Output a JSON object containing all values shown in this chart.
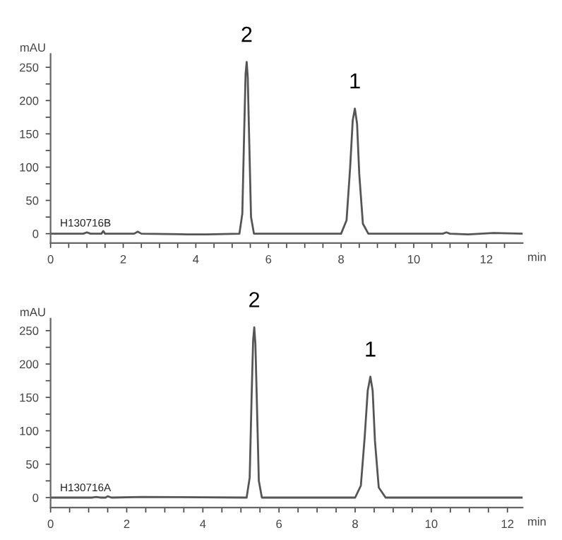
{
  "chart_data": [
    {
      "type": "line",
      "ylabel": "mAU",
      "xlabel": "min",
      "grid": false,
      "legend": false,
      "marker": "none",
      "line_style": "solid",
      "annotations": [
        {
          "text": "2",
          "x": 5.4,
          "y": 258
        },
        {
          "text": "1",
          "x": 8.38,
          "y": 188
        },
        "H130716B"
      ],
      "xlim": [
        0,
        13
      ],
      "ylim": [
        -14,
        270
      ],
      "xticks": [
        0,
        {
          "value": 0.5,
          "label": null
        },
        2,
        {
          "value": 1,
          "label": null
        },
        {
          "value": 1.5,
          "label": null
        },
        {
          "value": 2.5,
          "label": null
        },
        {
          "value": 3,
          "label": null
        },
        {
          "value": 3.5,
          "label": null
        },
        4,
        {
          "value": 4.5,
          "label": null
        },
        {
          "value": 5,
          "label": null
        },
        {
          "value": 5.5,
          "label": null
        },
        6,
        {
          "value": 6.5,
          "label": null
        },
        {
          "value": 7,
          "label": null
        },
        {
          "value": 7.5,
          "label": null
        },
        8,
        {
          "value": 8.5,
          "label": null
        },
        {
          "value": 9,
          "label": null
        },
        {
          "value": 9.5,
          "label": null
        },
        10,
        {
          "value": 10.5,
          "label": null
        },
        {
          "value": 11,
          "label": null
        },
        {
          "value": 11.5,
          "label": null
        },
        12,
        {
          "value": 12.5,
          "label": null
        }
      ],
      "yticks": [
        0,
        {
          "value": 25,
          "label": null
        },
        50,
        {
          "value": 75,
          "label": null
        },
        100,
        {
          "value": 125,
          "label": null
        },
        150,
        {
          "value": 175,
          "label": null
        },
        200,
        {
          "value": 225,
          "label": null
        },
        250
      ],
      "series": [
        {
          "color": "#555555",
          "x": [
            0,
            0.9,
            1.0,
            1.1,
            1.4,
            1.45,
            1.5,
            2.3,
            2.4,
            2.5,
            3.8,
            4.3,
            5.2,
            5.28,
            5.33,
            5.37,
            5.4,
            5.43,
            5.47,
            5.52,
            5.6,
            8.0,
            8.15,
            8.25,
            8.32,
            8.38,
            8.44,
            8.5,
            8.6,
            8.75,
            10.8,
            10.9,
            11.0,
            11.5,
            12.2,
            13.0
          ],
          "values": [
            0,
            0,
            2,
            0,
            0,
            4,
            0,
            0,
            3,
            0,
            -1,
            -1,
            0,
            30,
            150,
            240,
            258,
            235,
            140,
            25,
            0,
            0,
            20,
            100,
            170,
            188,
            165,
            90,
            15,
            0,
            0,
            2,
            0,
            -1,
            1,
            0
          ]
        }
      ]
    },
    {
      "type": "line",
      "ylabel": "mAU",
      "xlabel": "min",
      "grid": false,
      "legend": false,
      "marker": "none",
      "line_style": "solid",
      "annotations": [
        {
          "text": "2",
          "x": 5.35,
          "y": 255
        },
        {
          "text": "1",
          "x": 8.4,
          "y": 181
        },
        "H130716A"
      ],
      "xlim": [
        0,
        12.4
      ],
      "ylim": [
        -15,
        268
      ],
      "xticks": [
        0,
        {
          "value": 0.5,
          "label": null
        },
        2,
        {
          "value": 1,
          "label": null
        },
        {
          "value": 1.5,
          "label": null
        },
        {
          "value": 2.5,
          "label": null
        },
        {
          "value": 3,
          "label": null
        },
        {
          "value": 3.5,
          "label": null
        },
        4,
        {
          "value": 4.5,
          "label": null
        },
        {
          "value": 5,
          "label": null
        },
        {
          "value": 5.5,
          "label": null
        },
        6,
        {
          "value": 6.5,
          "label": null
        },
        {
          "value": 7,
          "label": null
        },
        {
          "value": 7.5,
          "label": null
        },
        8,
        {
          "value": 8.5,
          "label": null
        },
        {
          "value": 9,
          "label": null
        },
        {
          "value": 9.5,
          "label": null
        },
        10,
        {
          "value": 10.5,
          "label": null
        },
        {
          "value": 11,
          "label": null
        },
        {
          "value": 11.5,
          "label": null
        },
        12
      ],
      "yticks": [
        0,
        {
          "value": 25,
          "label": null
        },
        50,
        {
          "value": 75,
          "label": null
        },
        100,
        {
          "value": 125,
          "label": null
        },
        150,
        {
          "value": 175,
          "label": null
        },
        200,
        {
          "value": 225,
          "label": null
        },
        250
      ],
      "series": [
        {
          "color": "#555555",
          "x": [
            0,
            1.1,
            1.2,
            1.3,
            1.45,
            1.5,
            1.6,
            2.4,
            5.15,
            5.23,
            5.28,
            5.32,
            5.35,
            5.38,
            5.42,
            5.47,
            5.55,
            8.0,
            8.15,
            8.25,
            8.33,
            8.4,
            8.46,
            8.52,
            8.62,
            8.8,
            12.0,
            12.4
          ],
          "values": [
            0,
            0,
            1,
            0,
            0,
            2,
            0,
            1,
            0,
            30,
            150,
            235,
            255,
            230,
            140,
            25,
            0,
            0,
            18,
            90,
            160,
            181,
            160,
            85,
            15,
            0,
            0,
            0
          ]
        }
      ]
    }
  ]
}
